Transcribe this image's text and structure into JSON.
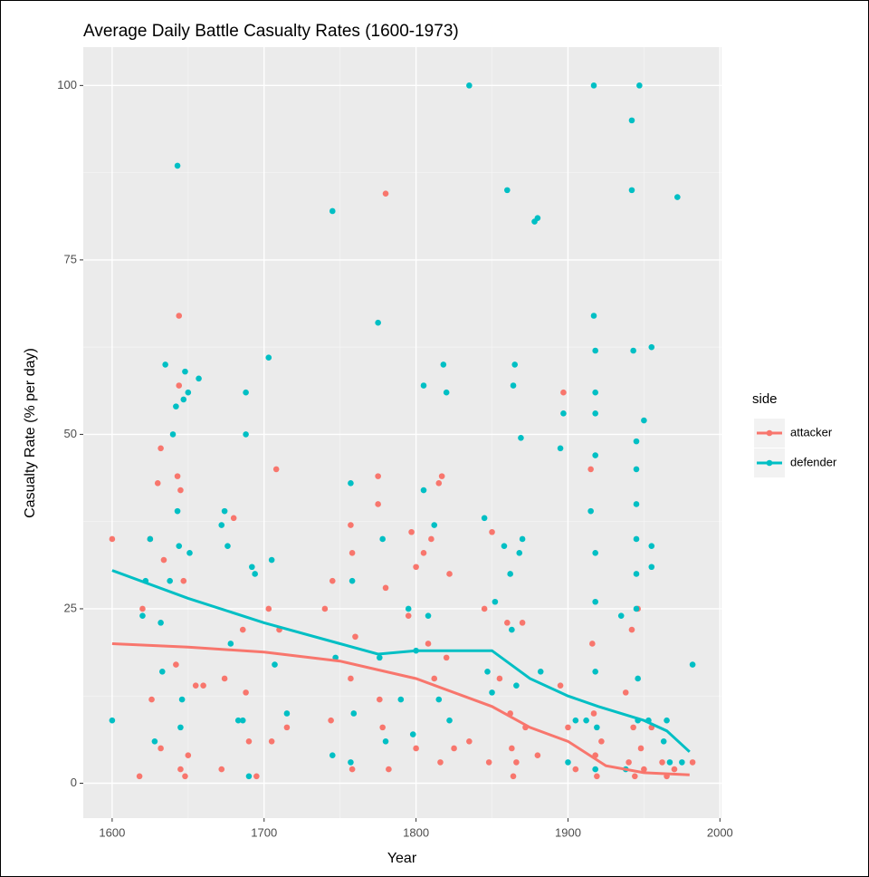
{
  "chart_data": {
    "type": "scatter",
    "title": "Average Daily Battle Casualty Rates (1600-1973)",
    "x_label": "Year",
    "y_label": "Casualty Rate (% per day)",
    "legend_title": "side",
    "legend": "right",
    "grid": true,
    "xlim": [
      1581,
      2001
    ],
    "ylim": [
      -5,
      105.5
    ],
    "xticks": [
      1600,
      1700,
      1800,
      1900,
      2000
    ],
    "yticks": [
      0,
      25,
      50,
      75,
      100
    ],
    "series": [
      {
        "name": "attacker",
        "color": "#F8766D",
        "x": [
          1600,
          1620,
          1618,
          1625,
          1626,
          1630,
          1632,
          1634,
          1632,
          1642,
          1643,
          1644,
          1644,
          1645,
          1645,
          1647,
          1648,
          1650,
          1655,
          1660,
          1672,
          1674,
          1680,
          1686,
          1688,
          1690,
          1695,
          1703,
          1705,
          1708,
          1710,
          1715,
          1740,
          1745,
          1744,
          1757,
          1758,
          1757,
          1758,
          1760,
          1775,
          1775,
          1776,
          1778,
          1780,
          1780,
          1782,
          1795,
          1797,
          1800,
          1800,
          1805,
          1808,
          1810,
          1812,
          1815,
          1817,
          1816,
          1820,
          1822,
          1825,
          1835,
          1845,
          1848,
          1850,
          1855,
          1860,
          1862,
          1863,
          1864,
          1866,
          1870,
          1872,
          1880,
          1895,
          1897,
          1900,
          1905,
          1915,
          1916,
          1917,
          1918,
          1919,
          1922,
          1938,
          1940,
          1942,
          1943,
          1944,
          1946,
          1948,
          1950,
          1955,
          1962,
          1965,
          1970,
          1982
        ],
        "values": [
          35,
          25,
          1,
          35,
          12,
          43,
          48,
          32,
          5,
          17,
          44,
          67,
          57,
          42,
          2,
          29,
          1,
          4,
          14,
          14,
          2,
          15,
          38,
          22,
          13,
          6,
          1,
          25,
          6,
          45,
          22,
          8,
          25,
          29,
          9,
          37,
          33,
          15,
          2,
          21,
          44,
          40,
          12,
          8,
          84.5,
          28,
          2,
          24,
          36,
          31,
          5,
          33,
          20,
          35,
          15,
          43,
          44,
          3,
          18,
          30,
          5,
          6,
          25,
          3,
          36,
          15,
          23,
          10,
          5,
          1,
          3,
          23,
          8,
          4,
          14,
          56,
          8,
          2,
          45,
          20,
          10,
          4,
          1,
          6,
          13,
          3,
          22,
          8,
          1,
          25,
          5,
          2,
          8,
          3,
          1,
          2,
          3
        ],
        "smooth_x": [
          1600,
          1650,
          1700,
          1750,
          1800,
          1850,
          1875,
          1900,
          1925,
          1950,
          1980
        ],
        "smooth_values": [
          20,
          19.5,
          18.8,
          17.5,
          15,
          11,
          8,
          6,
          2.5,
          1.5,
          1.2
        ]
      },
      {
        "name": "defender",
        "color": "#00BFC4",
        "x": [
          1600,
          1620,
          1622,
          1625,
          1628,
          1632,
          1633,
          1635,
          1638,
          1640,
          1642,
          1643,
          1643,
          1644,
          1645,
          1646,
          1647,
          1648,
          1650,
          1651,
          1657,
          1672,
          1674,
          1676,
          1678,
          1683,
          1686,
          1688,
          1688,
          1690,
          1692,
          1694,
          1703,
          1705,
          1707,
          1715,
          1745,
          1745,
          1747,
          1757,
          1758,
          1759,
          1757,
          1775,
          1776,
          1778,
          1780,
          1790,
          1795,
          1798,
          1800,
          1805,
          1805,
          1808,
          1812,
          1815,
          1818,
          1820,
          1822,
          1835,
          1845,
          1847,
          1850,
          1852,
          1858,
          1860,
          1862,
          1863,
          1864,
          1865,
          1866,
          1868,
          1869,
          1870,
          1878,
          1880,
          1882,
          1895,
          1897,
          1900,
          1905,
          1912,
          1915,
          1917,
          1917,
          1918,
          1918,
          1918,
          1918,
          1918,
          1918,
          1918,
          1919,
          1918,
          1935,
          1938,
          1942,
          1942,
          1943,
          1945,
          1945,
          1945,
          1945,
          1945,
          1945,
          1946,
          1946,
          1947,
          1950,
          1953,
          1955,
          1955,
          1955,
          1963,
          1965,
          1967,
          1972,
          1975,
          1982
        ],
        "values": [
          9,
          24,
          29,
          35,
          6,
          23,
          16,
          60,
          29,
          50,
          54,
          88.5,
          39,
          34,
          8,
          12,
          55,
          59,
          56,
          33,
          58,
          37,
          39,
          34,
          20,
          9,
          9,
          56,
          50,
          1,
          31,
          30,
          61,
          32,
          17,
          10,
          82,
          4,
          18,
          43,
          29,
          10,
          3,
          66,
          18,
          35,
          6,
          12,
          25,
          7,
          19,
          57,
          42,
          24,
          37,
          12,
          60,
          56,
          9,
          100,
          38,
          16,
          13,
          26,
          34,
          85,
          30,
          22,
          57,
          60,
          14,
          33,
          49.5,
          35,
          80.5,
          81,
          16,
          48,
          53,
          3,
          9,
          9,
          39,
          100,
          67,
          62,
          56,
          53,
          47,
          33,
          26,
          16,
          8,
          2,
          24,
          2,
          95,
          85,
          62,
          49,
          45,
          40,
          35,
          30,
          25,
          15,
          9,
          100,
          52,
          9,
          62.5,
          34,
          31,
          6,
          9,
          3,
          84,
          3,
          17
        ],
        "smooth_x": [
          1600,
          1650,
          1700,
          1750,
          1775,
          1800,
          1850,
          1875,
          1900,
          1920,
          1950,
          1965,
          1980
        ],
        "smooth_values": [
          30.5,
          26.5,
          23,
          20,
          18.5,
          19,
          19,
          15,
          12.5,
          11,
          9,
          7.5,
          4.5
        ]
      }
    ]
  }
}
